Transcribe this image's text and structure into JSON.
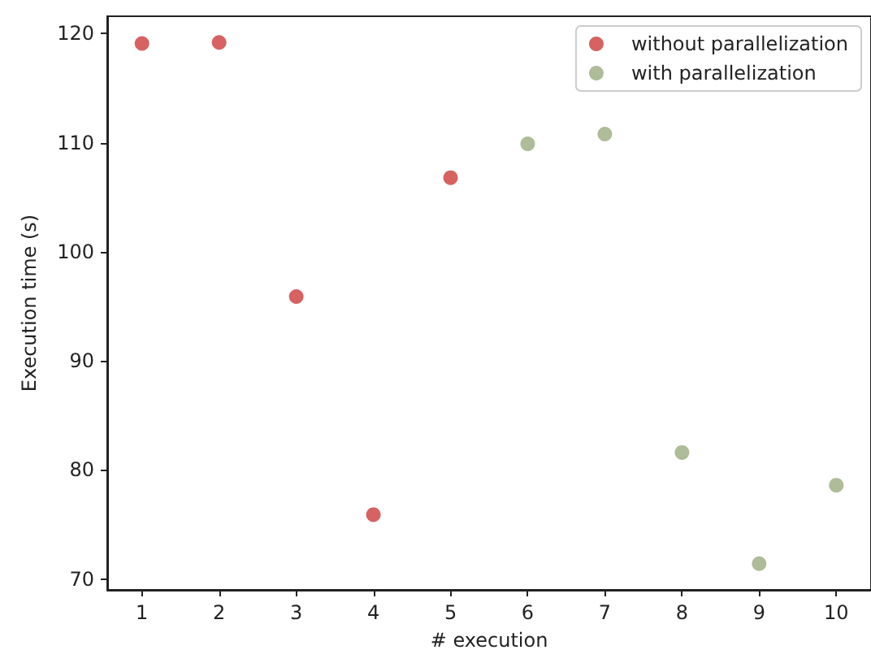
{
  "chart_data": {
    "type": "scatter",
    "xlabel": "# execution",
    "ylabel": "Execution time (s)",
    "series": [
      {
        "name": "without parallelization",
        "color": "#cc3b3b",
        "x": [
          1,
          2,
          3,
          4,
          5
        ],
        "values": [
          119.1,
          119.2,
          95.9,
          75.9,
          106.8
        ]
      },
      {
        "name": "with parallelization",
        "color": "#9aab80",
        "x": [
          6,
          7,
          8,
          9,
          10
        ],
        "values": [
          109.9,
          110.8,
          81.6,
          71.4,
          78.6
        ]
      }
    ],
    "xlim": [
      0.55,
      10.45
    ],
    "xticks": [
      1,
      2,
      3,
      4,
      5,
      6,
      7,
      8,
      9,
      10
    ],
    "ylim": [
      69,
      121.6
    ],
    "yticks": [
      70,
      80,
      90,
      100,
      110,
      120
    ],
    "legend": "top right",
    "marker": "circle",
    "grid": false
  }
}
